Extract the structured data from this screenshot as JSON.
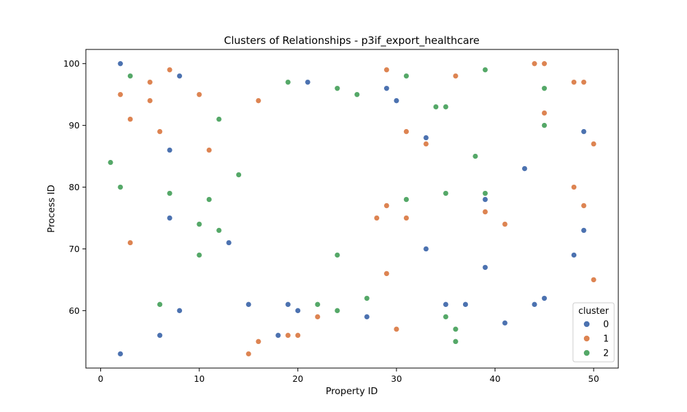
{
  "chart_data": {
    "type": "scatter",
    "title": "Clusters of Relationships - p3if_export_healthcare",
    "xlabel": "Property ID",
    "ylabel": "Process ID",
    "xlim": [
      -1.5,
      52.5
    ],
    "ylim": [
      50.7,
      102.3
    ],
    "xticks": [
      0,
      10,
      20,
      30,
      40,
      50
    ],
    "yticks": [
      60,
      70,
      80,
      90,
      100
    ],
    "grid": false,
    "legend": {
      "title": "cluster",
      "position": "bottom-right"
    },
    "series": [
      {
        "name": "0",
        "color": "#4c72b0",
        "points": [
          [
            2,
            100
          ],
          [
            8,
            98
          ],
          [
            21,
            97
          ],
          [
            29,
            96
          ],
          [
            30,
            94
          ],
          [
            33,
            88
          ],
          [
            49,
            89
          ],
          [
            7,
            86
          ],
          [
            43,
            83
          ],
          [
            39,
            78
          ],
          [
            7,
            75
          ],
          [
            49,
            73
          ],
          [
            13,
            71
          ],
          [
            33,
            70
          ],
          [
            48,
            69
          ],
          [
            39,
            67
          ],
          [
            45,
            62
          ],
          [
            15,
            61
          ],
          [
            19,
            61
          ],
          [
            35,
            61
          ],
          [
            37,
            61
          ],
          [
            44,
            61
          ],
          [
            8,
            60
          ],
          [
            20,
            60
          ],
          [
            27,
            59
          ],
          [
            41,
            58
          ],
          [
            6,
            56
          ],
          [
            18,
            56
          ],
          [
            2,
            53
          ]
        ]
      },
      {
        "name": "1",
        "color": "#dd8452",
        "points": [
          [
            7,
            99
          ],
          [
            29,
            99
          ],
          [
            44,
            100
          ],
          [
            45,
            100
          ],
          [
            36,
            98
          ],
          [
            5,
            97
          ],
          [
            48,
            97
          ],
          [
            49,
            97
          ],
          [
            2,
            95
          ],
          [
            10,
            95
          ],
          [
            5,
            94
          ],
          [
            16,
            94
          ],
          [
            3,
            91
          ],
          [
            45,
            92
          ],
          [
            6,
            89
          ],
          [
            31,
            89
          ],
          [
            33,
            87
          ],
          [
            50,
            87
          ],
          [
            11,
            86
          ],
          [
            48,
            80
          ],
          [
            29,
            77
          ],
          [
            49,
            77
          ],
          [
            39,
            76
          ],
          [
            28,
            75
          ],
          [
            31,
            75
          ],
          [
            41,
            74
          ],
          [
            3,
            71
          ],
          [
            29,
            66
          ],
          [
            50,
            65
          ],
          [
            22,
            59
          ],
          [
            30,
            57
          ],
          [
            19,
            56
          ],
          [
            20,
            56
          ],
          [
            16,
            55
          ],
          [
            15,
            53
          ]
        ]
      },
      {
        "name": "2",
        "color": "#55a868",
        "points": [
          [
            3,
            98
          ],
          [
            31,
            98
          ],
          [
            39,
            99
          ],
          [
            19,
            97
          ],
          [
            24,
            96
          ],
          [
            45,
            96
          ],
          [
            26,
            95
          ],
          [
            34,
            93
          ],
          [
            35,
            93
          ],
          [
            12,
            91
          ],
          [
            45,
            90
          ],
          [
            38,
            85
          ],
          [
            1,
            84
          ],
          [
            14,
            82
          ],
          [
            2,
            80
          ],
          [
            7,
            79
          ],
          [
            35,
            79
          ],
          [
            39,
            79
          ],
          [
            11,
            78
          ],
          [
            31,
            78
          ],
          [
            10,
            74
          ],
          [
            12,
            73
          ],
          [
            10,
            69
          ],
          [
            24,
            69
          ],
          [
            27,
            62
          ],
          [
            6,
            61
          ],
          [
            22,
            61
          ],
          [
            24,
            60
          ],
          [
            35,
            59
          ],
          [
            36,
            57
          ],
          [
            36,
            55
          ]
        ]
      }
    ]
  }
}
